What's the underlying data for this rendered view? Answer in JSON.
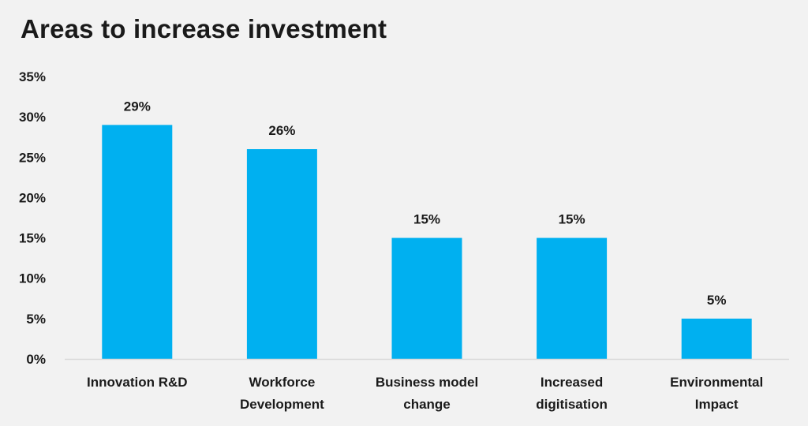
{
  "chart_data": {
    "type": "bar",
    "title": "Areas to increase investment",
    "xlabel": "",
    "ylabel": "",
    "categories": [
      [
        "Innovation R&D"
      ],
      [
        "Workforce",
        "Development"
      ],
      [
        "Business model",
        "change"
      ],
      [
        "Increased",
        "digitisation"
      ],
      [
        "Environmental",
        "Impact"
      ]
    ],
    "values": [
      29,
      26,
      15,
      15,
      5
    ],
    "data_labels": [
      "29%",
      "26%",
      "15%",
      "15%",
      "5%"
    ],
    "ylim": [
      0,
      35
    ],
    "yticks": [
      0,
      5,
      10,
      15,
      20,
      25,
      30,
      35
    ],
    "ytick_labels": [
      "0%",
      "5%",
      "10%",
      "15%",
      "20%",
      "25%",
      "30%",
      "35%"
    ],
    "grid": false,
    "legend": "none",
    "colors": {
      "bar": "#00b0f0",
      "axis": "#d9d9d9",
      "background": "#f2f2f2"
    }
  }
}
